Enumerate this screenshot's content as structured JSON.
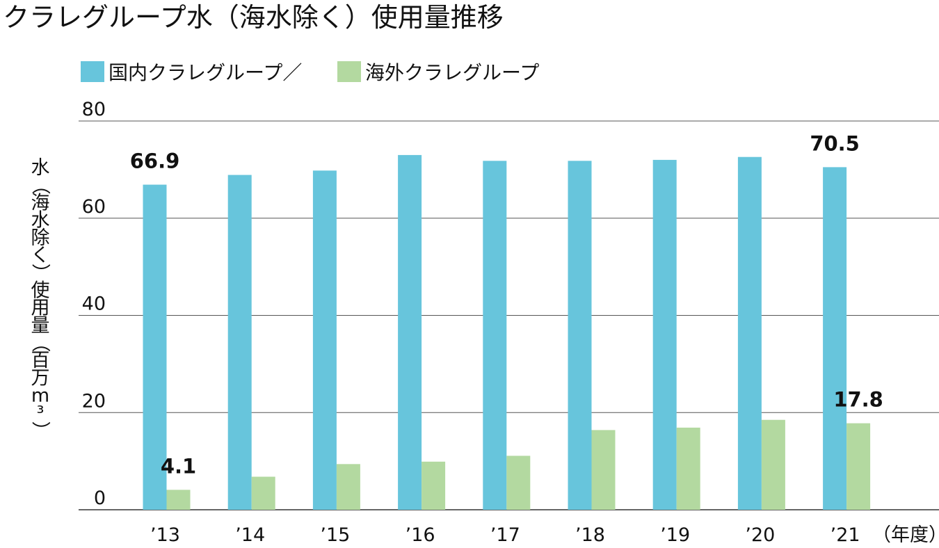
{
  "chart_data": {
    "type": "bar",
    "title": "クラレグループ水（海水除く）使用量推移",
    "ylabel": "水（海水除く）使用量（百万m³）",
    "xlabel": "（年度）",
    "ylim": [
      0,
      80
    ],
    "yticks": [
      0,
      20,
      40,
      60,
      80
    ],
    "grid": true,
    "legend_position": "top-left",
    "categories": [
      "’13",
      "’14",
      "’15",
      "’16",
      "’17",
      "’18",
      "’19",
      "’20",
      "’21"
    ],
    "series": [
      {
        "name": "国内クラレグループ／",
        "color": "#67C5DC",
        "values": [
          66.9,
          68.9,
          69.8,
          73.0,
          71.8,
          71.8,
          72.0,
          72.6,
          70.5
        ],
        "labels": [
          "66.9",
          "",
          "",
          "",
          "",
          "",
          "",
          "",
          "70.5"
        ]
      },
      {
        "name": "海外クラレグループ",
        "color": "#B3D9A0",
        "values": [
          4.1,
          6.8,
          9.4,
          9.9,
          11.1,
          16.4,
          16.9,
          18.5,
          17.8
        ],
        "labels": [
          "4.1",
          "",
          "",
          "",
          "",
          "",
          "",
          "",
          "17.8"
        ]
      }
    ]
  }
}
